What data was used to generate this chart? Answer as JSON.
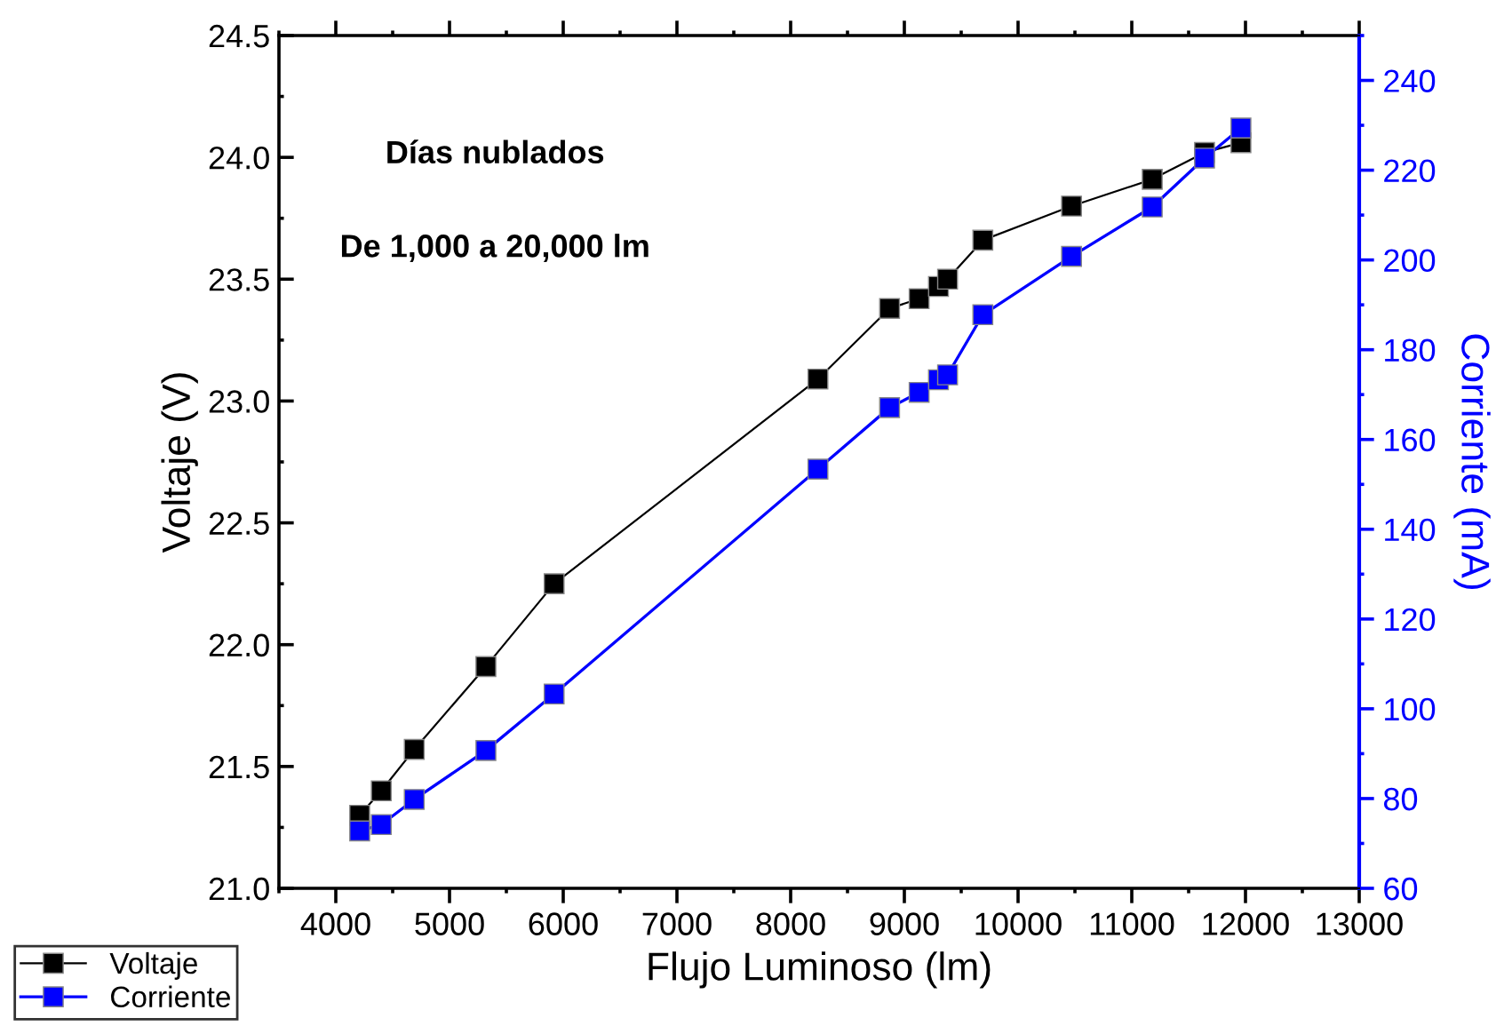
{
  "chart_data": {
    "type": "line",
    "xlabel": "Flujo Luminoso (lm)",
    "ylabel": "Voltaje (V)",
    "y2label": "Corriente (mA)",
    "x": [
      4210,
      4400,
      4690,
      5320,
      5920,
      8240,
      8870,
      9130,
      9300,
      9380,
      9690,
      10470,
      11180,
      11640,
      11960
    ],
    "series": [
      {
        "name": "Voltaje",
        "color": "#000000",
        "values": [
          21.3,
          21.4,
          21.57,
          21.91,
          22.25,
          23.09,
          23.38,
          23.42,
          23.47,
          23.5,
          23.66,
          23.8,
          23.91,
          24.02,
          24.06
        ]
      },
      {
        "name": "Corriente",
        "color": "#0000ff",
        "axis": "y2",
        "values": [
          72.8,
          74.2,
          79.8,
          90.7,
          103.3,
          153.4,
          167.1,
          170.5,
          173.3,
          174.4,
          187.8,
          200.8,
          211.8,
          222.7,
          229.4
        ]
      }
    ],
    "xlim": [
      3500,
      13000
    ],
    "xticks": [
      4000,
      5000,
      6000,
      7000,
      8000,
      9000,
      10000,
      11000,
      12000,
      13000
    ],
    "ylim": [
      21.0,
      24.5
    ],
    "yticks": [
      {
        "value": 21,
        "label": "21.0"
      },
      21.5,
      {
        "value": 22,
        "label": "22.0"
      },
      22.5,
      {
        "value": 23,
        "label": "23.0"
      },
      23.5,
      {
        "value": 24,
        "label": "24.0"
      },
      24.5
    ],
    "y2lim": [
      60,
      250
    ],
    "y2ticks": [
      60,
      80,
      100,
      120,
      140,
      160,
      180,
      200,
      220,
      240
    ],
    "annotations": [
      "Días nublados",
      "De 1,000 a 20,000 lm"
    ],
    "marker": "square",
    "line_style": "solid",
    "grid": false,
    "legend": "bottom left"
  }
}
